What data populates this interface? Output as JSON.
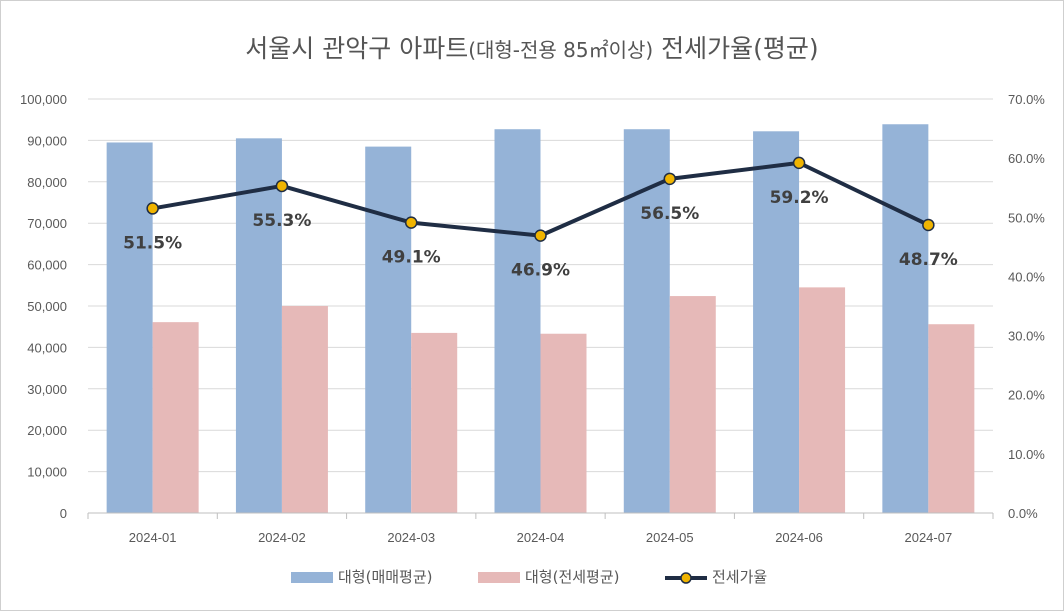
{
  "chart_data": {
    "type": "bar",
    "title_main": "서울시 관악구 아파트",
    "title_paren": "(대형-전용 85㎡이상)",
    "title_tail": " 전세가율(평균)",
    "categories": [
      "2024-01",
      "2024-02",
      "2024-03",
      "2024-04",
      "2024-05",
      "2024-06",
      "2024-07"
    ],
    "series": [
      {
        "name": "대형(매매평균)",
        "type": "bar",
        "axis": "left",
        "color": "#95b3d7",
        "values": [
          89500,
          90500,
          88500,
          92700,
          92700,
          92200,
          93900
        ]
      },
      {
        "name": "대형(전세평균)",
        "type": "bar",
        "axis": "left",
        "color": "#e6b9b8",
        "values": [
          46100,
          50000,
          43500,
          43300,
          52400,
          54500,
          45600
        ]
      },
      {
        "name": "전세가율",
        "type": "line",
        "axis": "right",
        "color": "#1f2d44",
        "marker_color": "#f0b400",
        "values": [
          51.5,
          55.3,
          49.1,
          46.9,
          56.5,
          59.2,
          48.7
        ],
        "labels": [
          "51.5%",
          "55.3%",
          "49.1%",
          "46.9%",
          "56.5%",
          "59.2%",
          "48.7%"
        ]
      }
    ],
    "y_left": {
      "min": 0,
      "max": 100000,
      "ticks": [
        "0",
        "10,000",
        "20,000",
        "30,000",
        "40,000",
        "50,000",
        "60,000",
        "70,000",
        "80,000",
        "90,000",
        "100,000"
      ]
    },
    "y_right": {
      "min": 0,
      "max": 70,
      "ticks": [
        "0.0%",
        "10.0%",
        "20.0%",
        "30.0%",
        "40.0%",
        "50.0%",
        "60.0%",
        "70.0%"
      ]
    },
    "grid": true,
    "legend": "bottom"
  }
}
